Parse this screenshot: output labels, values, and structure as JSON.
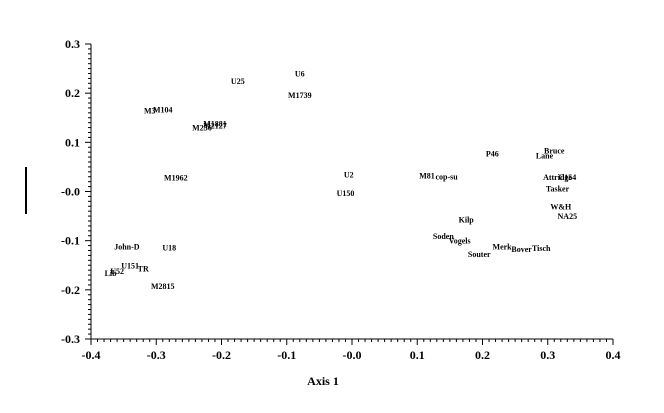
{
  "chart_data": {
    "type": "scatter",
    "title": "",
    "xlabel": "Axis 1",
    "ylabel": "",
    "xlim": [
      -0.4,
      0.4
    ],
    "ylim": [
      -0.3,
      0.3
    ],
    "x_ticks": [
      -0.4,
      -0.3,
      -0.2,
      -0.1,
      0.0,
      0.1,
      0.2,
      0.3,
      0.4
    ],
    "x_tick_labels": [
      "-0.4",
      "-0.3",
      "-0.2",
      "-0.1",
      "-0.0",
      "0.1",
      "0.2",
      "0.3",
      "0.4"
    ],
    "y_ticks": [
      0.3,
      0.2,
      0.1,
      0.0,
      -0.1,
      -0.2,
      -0.3
    ],
    "y_tick_labels": [
      "0.3",
      "0.2",
      "0.1",
      "-0.0",
      "-0.1",
      "-0.2",
      "-0.3"
    ],
    "grid": false,
    "legend": "none",
    "points": [
      {
        "label": "U6",
        "x": -0.08,
        "y": 0.24
      },
      {
        "label": "U25",
        "x": -0.175,
        "y": 0.225
      },
      {
        "label": "M1739",
        "x": -0.08,
        "y": 0.196
      },
      {
        "label": "M3",
        "x": -0.31,
        "y": 0.165
      },
      {
        "label": "M104",
        "x": -0.29,
        "y": 0.167
      },
      {
        "label": "M1881",
        "x": -0.21,
        "y": 0.138
      },
      {
        "label": "M2127",
        "x": -0.21,
        "y": 0.134
      },
      {
        "label": "M256",
        "x": -0.23,
        "y": 0.13
      },
      {
        "label": "M1962",
        "x": -0.27,
        "y": 0.028
      },
      {
        "label": "U2",
        "x": -0.005,
        "y": 0.035
      },
      {
        "label": "U150",
        "x": -0.01,
        "y": -0.003
      },
      {
        "label": "M81",
        "x": 0.115,
        "y": 0.033
      },
      {
        "label": "cop-su",
        "x": 0.145,
        "y": 0.031
      },
      {
        "label": "P46",
        "x": 0.215,
        "y": 0.077
      },
      {
        "label": "Bruce",
        "x": 0.31,
        "y": 0.083
      },
      {
        "label": "Lane",
        "x": 0.295,
        "y": 0.073
      },
      {
        "label": "Attridge",
        "x": 0.315,
        "y": 0.03
      },
      {
        "label": "C154",
        "x": 0.33,
        "y": 0.03
      },
      {
        "label": "Tasker",
        "x": 0.315,
        "y": 0.006
      },
      {
        "label": "W&H",
        "x": 0.32,
        "y": -0.03
      },
      {
        "label": "NA25",
        "x": 0.33,
        "y": -0.05
      },
      {
        "label": "Kilp",
        "x": 0.175,
        "y": -0.057
      },
      {
        "label": "Soden",
        "x": 0.14,
        "y": -0.09
      },
      {
        "label": "Vogels",
        "x": 0.165,
        "y": -0.1
      },
      {
        "label": "Merk",
        "x": 0.23,
        "y": -0.112
      },
      {
        "label": "Bover",
        "x": 0.26,
        "y": -0.117
      },
      {
        "label": "Tisch",
        "x": 0.29,
        "y": -0.115
      },
      {
        "label": "Souter",
        "x": 0.195,
        "y": -0.127
      },
      {
        "label": "John-D",
        "x": -0.345,
        "y": -0.112
      },
      {
        "label": "U18",
        "x": -0.28,
        "y": -0.114
      },
      {
        "label": "U151",
        "x": -0.34,
        "y": -0.15
      },
      {
        "label": "TR",
        "x": -0.32,
        "y": -0.157
      },
      {
        "label": "U52",
        "x": -0.36,
        "y": -0.162
      },
      {
        "label": "Lib",
        "x": -0.37,
        "y": -0.166
      },
      {
        "label": "M2815",
        "x": -0.29,
        "y": -0.192
      }
    ]
  }
}
